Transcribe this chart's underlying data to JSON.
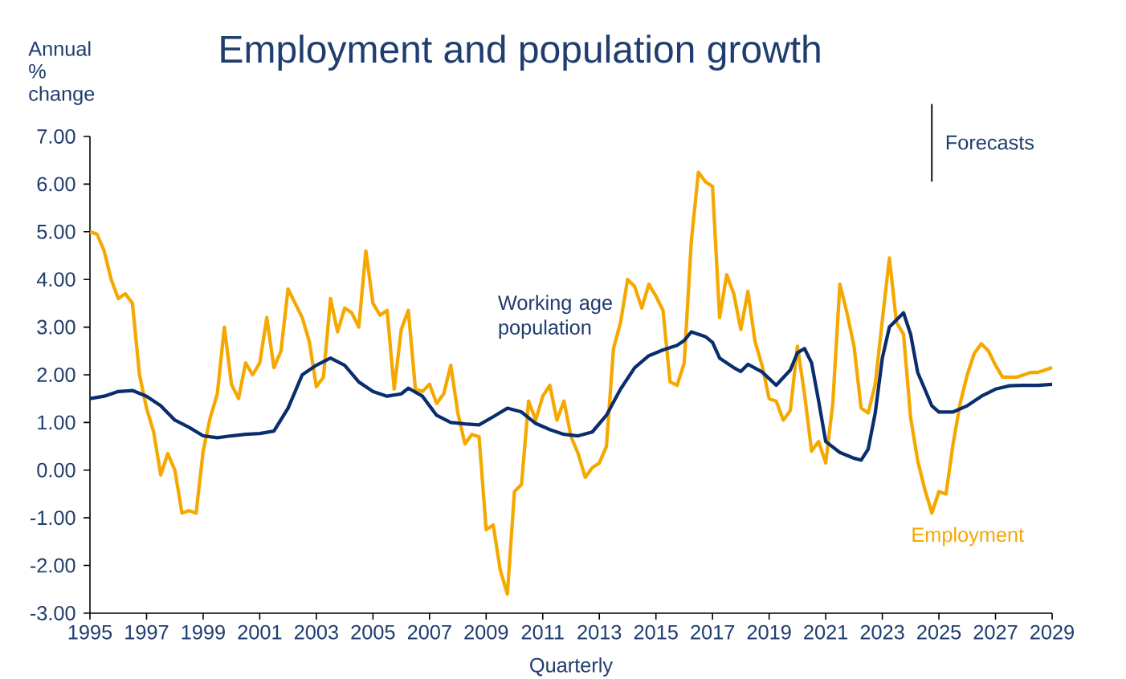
{
  "chart_data": {
    "type": "line",
    "title": "Employment and population growth",
    "xlabel": "Quarterly",
    "ylabel": "Annual % change",
    "xlim": [
      1995,
      2029
    ],
    "xticks": [
      1995,
      1997,
      1999,
      2001,
      2003,
      2005,
      2007,
      2009,
      2011,
      2013,
      2015,
      2017,
      2019,
      2021,
      2023,
      2025,
      2027,
      2029
    ],
    "ylim": [
      -3,
      7
    ],
    "yticks": [
      {
        "value": -3,
        "label": "-3.00"
      },
      {
        "value": -2,
        "label": "-2.00"
      },
      {
        "value": -1,
        "label": "-1.00"
      },
      {
        "value": 0,
        "label": "0.00"
      },
      {
        "value": 1,
        "label": "1.00"
      },
      {
        "value": 2,
        "label": "2.00"
      },
      {
        "value": 3,
        "label": "3.00"
      },
      {
        "value": 4,
        "label": "4.00"
      },
      {
        "value": 5,
        "label": "5.00"
      },
      {
        "value": 6,
        "label": "6.00"
      },
      {
        "value": 7,
        "label": "7.00"
      }
    ],
    "grid": false,
    "legend": false,
    "marker": "none",
    "line_style": "solid",
    "ref_lines": [
      {
        "axis": "x",
        "value": 2024.75,
        "label": "Forecasts",
        "color": "#000000"
      }
    ],
    "series": [
      {
        "name": "Employment",
        "color": "#f5a800",
        "x": [
          1995,
          1995.25,
          1995.5,
          1995.75,
          1996,
          1996.25,
          1996.5,
          1996.75,
          1997,
          1997.25,
          1997.5,
          1997.75,
          1998,
          1998.25,
          1998.5,
          1998.75,
          1999,
          1999.25,
          1999.5,
          1999.75,
          2000,
          2000.25,
          2000.5,
          2000.75,
          2001,
          2001.25,
          2001.5,
          2001.75,
          2002,
          2002.25,
          2002.5,
          2002.75,
          2003,
          2003.25,
          2003.5,
          2003.75,
          2004,
          2004.25,
          2004.5,
          2004.75,
          2005,
          2005.25,
          2005.5,
          2005.75,
          2006,
          2006.25,
          2006.5,
          2006.75,
          2007,
          2007.25,
          2007.5,
          2007.75,
          2008,
          2008.25,
          2008.5,
          2008.75,
          2009,
          2009.25,
          2009.5,
          2009.75,
          2010,
          2010.25,
          2010.5,
          2010.75,
          2011,
          2011.25,
          2011.5,
          2011.75,
          2012,
          2012.25,
          2012.5,
          2012.75,
          2013,
          2013.25,
          2013.5,
          2013.75,
          2014,
          2014.25,
          2014.5,
          2014.75,
          2015,
          2015.25,
          2015.5,
          2015.75,
          2016,
          2016.25,
          2016.5,
          2016.75,
          2017,
          2017.25,
          2017.5,
          2017.75,
          2018,
          2018.25,
          2018.5,
          2018.75,
          2019,
          2019.25,
          2019.5,
          2019.75,
          2020,
          2020.25,
          2020.5,
          2020.75,
          2021,
          2021.25,
          2021.5,
          2021.75,
          2022,
          2022.25,
          2022.5,
          2022.75,
          2023,
          2023.25,
          2023.5,
          2023.75,
          2024,
          2024.25,
          2024.5,
          2024.75,
          2025,
          2025.25,
          2025.5,
          2025.75,
          2026,
          2026.25,
          2026.5,
          2026.75,
          2027,
          2027.25,
          2027.5,
          2027.75,
          2028,
          2028.25,
          2028.5,
          2028.75,
          2029
        ],
        "values": [
          5.0,
          4.95,
          4.6,
          4.0,
          3.6,
          3.7,
          3.5,
          2.0,
          1.3,
          0.8,
          -0.1,
          0.35,
          0.0,
          -0.9,
          -0.85,
          -0.9,
          0.4,
          1.1,
          1.6,
          3.0,
          1.8,
          1.5,
          2.25,
          2.0,
          2.25,
          3.2,
          2.15,
          2.5,
          3.8,
          3.5,
          3.2,
          2.7,
          1.75,
          1.95,
          3.6,
          2.9,
          3.4,
          3.3,
          3.0,
          4.6,
          3.5,
          3.25,
          3.35,
          1.7,
          2.95,
          3.35,
          1.7,
          1.65,
          1.8,
          1.4,
          1.6,
          2.2,
          1.2,
          0.55,
          0.75,
          0.7,
          -1.25,
          -1.15,
          -2.1,
          -2.6,
          -0.45,
          -0.3,
          1.45,
          1.05,
          1.55,
          1.78,
          1.05,
          1.45,
          0.7,
          0.35,
          -0.15,
          0.05,
          0.15,
          0.5,
          2.55,
          3.1,
          4.0,
          3.85,
          3.4,
          3.9,
          3.65,
          3.35,
          1.85,
          1.78,
          2.25,
          4.8,
          6.25,
          6.05,
          5.95,
          3.2,
          4.1,
          3.7,
          2.95,
          3.75,
          2.7,
          2.2,
          1.5,
          1.45,
          1.05,
          1.25,
          2.6,
          1.6,
          0.4,
          0.6,
          0.15,
          1.4,
          3.9,
          3.3,
          2.6,
          1.3,
          1.2,
          1.8,
          3.15,
          4.45,
          3.1,
          2.85,
          1.1,
          0.2,
          -0.4,
          -0.9,
          -0.45,
          -0.5,
          0.55,
          1.4,
          2.0,
          2.45,
          2.65,
          2.5,
          2.2,
          1.95,
          1.95,
          1.95,
          2.0,
          2.05,
          2.05,
          2.1,
          2.15
        ]
      },
      {
        "name": "Working age population",
        "color": "#0a2d6e",
        "x": [
          1995,
          1995.5,
          1996,
          1996.5,
          1997,
          1997.5,
          1998,
          1998.5,
          1999,
          1999.5,
          2000,
          2000.5,
          2001,
          2001.5,
          2002,
          2002.5,
          2003,
          2003.5,
          2004,
          2004.5,
          2005,
          2005.5,
          2006,
          2006.25,
          2006.75,
          2007.25,
          2007.75,
          2008.25,
          2008.75,
          2009.25,
          2009.75,
          2010.25,
          2010.75,
          2011.25,
          2011.75,
          2012.25,
          2012.75,
          2013.25,
          2013.75,
          2014.25,
          2014.75,
          2015.25,
          2015.75,
          2016,
          2016.25,
          2016.75,
          2017,
          2017.25,
          2017.75,
          2018,
          2018.25,
          2018.75,
          2019.25,
          2019.75,
          2020,
          2020.25,
          2020.5,
          2020.75,
          2021,
          2021.5,
          2022,
          2022.25,
          2022.5,
          2022.75,
          2023,
          2023.25,
          2023.75,
          2024,
          2024.25,
          2024.75,
          2025,
          2025.5,
          2026,
          2026.5,
          2027,
          2027.5,
          2028,
          2028.5,
          2029
        ],
        "values": [
          1.5,
          1.55,
          1.65,
          1.67,
          1.55,
          1.35,
          1.05,
          0.9,
          0.72,
          0.68,
          0.72,
          0.75,
          0.77,
          0.82,
          1.3,
          2.0,
          2.2,
          2.35,
          2.2,
          1.85,
          1.65,
          1.55,
          1.6,
          1.72,
          1.55,
          1.15,
          1.0,
          0.97,
          0.95,
          1.12,
          1.3,
          1.22,
          0.98,
          0.85,
          0.75,
          0.72,
          0.8,
          1.15,
          1.7,
          2.15,
          2.4,
          2.52,
          2.62,
          2.72,
          2.9,
          2.8,
          2.68,
          2.35,
          2.15,
          2.07,
          2.22,
          2.06,
          1.78,
          2.1,
          2.46,
          2.55,
          2.25,
          1.45,
          0.6,
          0.37,
          0.25,
          0.21,
          0.44,
          1.2,
          2.35,
          3.0,
          3.3,
          2.85,
          2.05,
          1.35,
          1.22,
          1.22,
          1.35,
          1.55,
          1.7,
          1.77,
          1.78,
          1.78,
          1.8
        ]
      }
    ]
  }
}
